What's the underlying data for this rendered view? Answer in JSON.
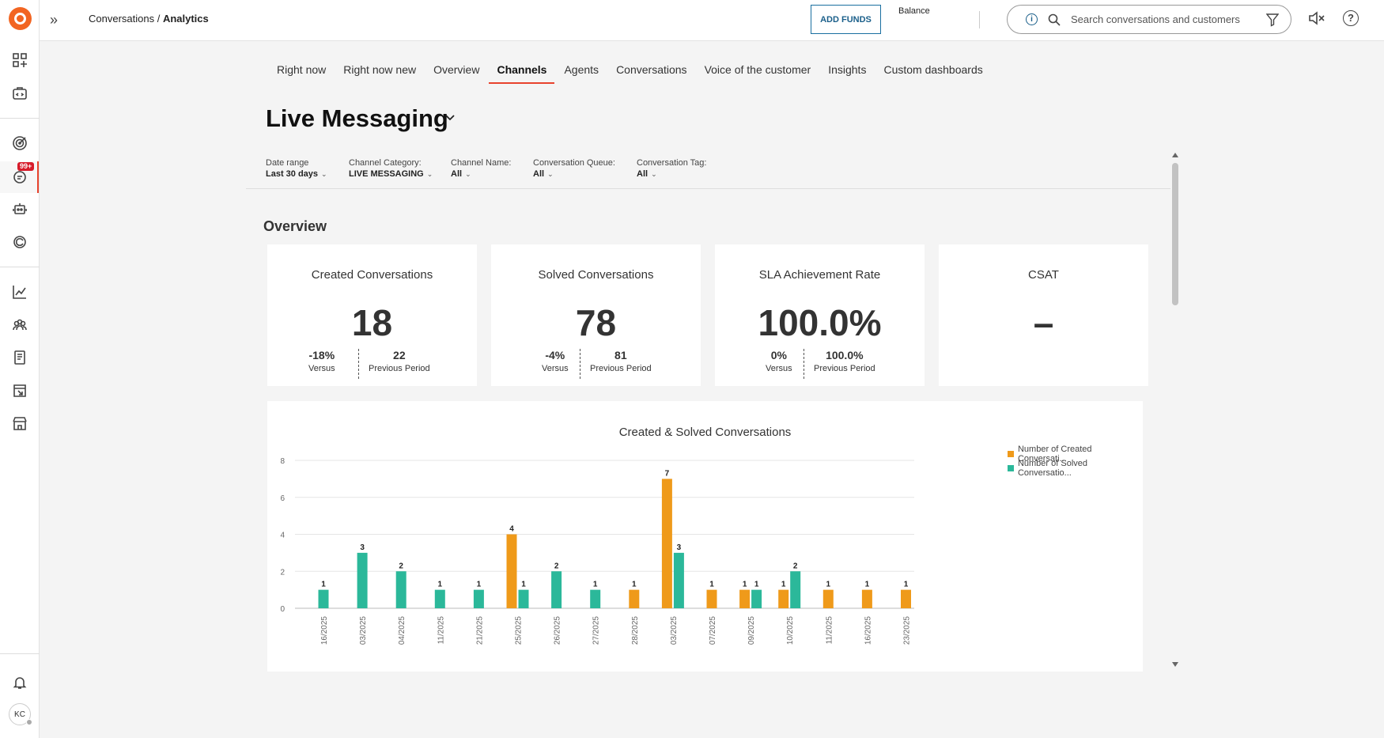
{
  "header": {
    "breadcrumb_prefix": "Conversations / ",
    "breadcrumb_current": "Analytics",
    "add_funds": "ADD FUNDS",
    "balance": "Balance",
    "search_placeholder": "Search conversations and customers",
    "info_glyph": "i",
    "help_glyph": "?"
  },
  "rail": {
    "badge": "99+",
    "avatar": "KC"
  },
  "tabs": [
    {
      "label": "Right now",
      "active": false
    },
    {
      "label": "Right now new",
      "active": false
    },
    {
      "label": "Overview",
      "active": false
    },
    {
      "label": "Channels",
      "active": true
    },
    {
      "label": "Agents",
      "active": false
    },
    {
      "label": "Conversations",
      "active": false
    },
    {
      "label": "Voice of the customer",
      "active": false
    },
    {
      "label": "Insights",
      "active": false
    },
    {
      "label": "Custom dashboards",
      "active": false
    }
  ],
  "page_title": "Live Messaging",
  "filters": [
    {
      "label": "Date range",
      "value": "Last 30 days"
    },
    {
      "label": "Channel Category:",
      "value": "LIVE MESSAGING"
    },
    {
      "label": "Channel Name:",
      "value": "All"
    },
    {
      "label": "Conversation Queue:",
      "value": "All"
    },
    {
      "label": "Conversation Tag:",
      "value": "All"
    }
  ],
  "overview_title": "Overview",
  "cards": [
    {
      "title": "Created Conversations",
      "value": "18",
      "versus": "-18%",
      "versus_label": "Versus",
      "previous": "22",
      "previous_label": "Previous Period"
    },
    {
      "title": "Solved Conversations",
      "value": "78",
      "versus": "-4%",
      "versus_label": "Versus",
      "previous": "81",
      "previous_label": "Previous Period"
    },
    {
      "title": "SLA Achievement Rate",
      "value": "100.0%",
      "versus": "0%",
      "versus_label": "Versus",
      "previous": "100.0%",
      "previous_label": "Previous Period"
    },
    {
      "title": "CSAT",
      "value": "–"
    }
  ],
  "colors": {
    "created": "#ef9a1a",
    "solved": "#2bb89a",
    "accent": "#e8432d"
  },
  "chart_data": {
    "type": "bar",
    "title": "Created & Solved Conversations",
    "categories": [
      "16/2025",
      "03/2025",
      "04/2025",
      "11/2025",
      "21/2025",
      "25/2025",
      "26/2025",
      "27/2025",
      "28/2025",
      "03/2025",
      "07/2025",
      "09/2025",
      "10/2025",
      "11/2025",
      "16/2025",
      "23/2025"
    ],
    "series": [
      {
        "name": "Number of Created Conversati...",
        "values": [
          0,
          0,
          0,
          0,
          0,
          4,
          0,
          0,
          1,
          7,
          1,
          1,
          1,
          1,
          1,
          1
        ]
      },
      {
        "name": "Number of Solved Conversatio...",
        "values": [
          1,
          3,
          2,
          1,
          1,
          1,
          2,
          1,
          0,
          3,
          0,
          1,
          2,
          0,
          0,
          0
        ]
      }
    ],
    "yticks": [
      0,
      2,
      4,
      6,
      8
    ],
    "ylim": [
      0,
      8
    ]
  }
}
